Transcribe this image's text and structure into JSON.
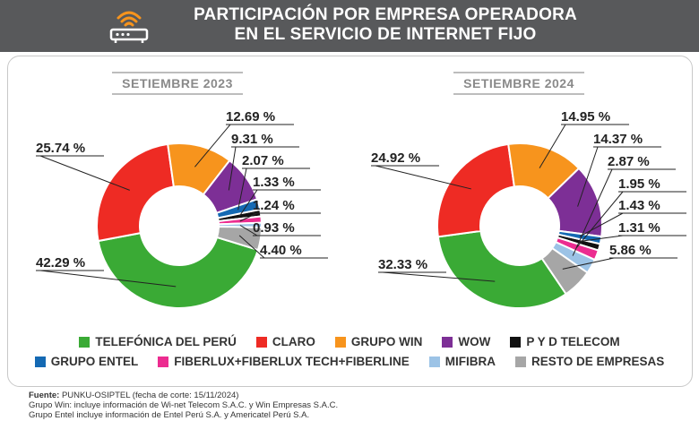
{
  "header": {
    "title_line1": "PARTICIPACIÓN POR EMPRESA OPERADORA",
    "title_line2": "EN EL SERVICIO DE INTERNET FIJO",
    "icon": "router-wifi-icon"
  },
  "chart_data": [
    {
      "type": "pie",
      "subtitle": "SETIEMBRE 2023",
      "categories": [
        "TELEFÓNICA DEL PERÚ",
        "CLARO",
        "GRUPO WIN",
        "WOW",
        "P Y D TELECOM",
        "GRUPO ENTEL",
        "FIBERLUX+FIBERLUX TECH+FIBERLINE",
        "MIFIBRA",
        "RESTO DE EMPRESAS"
      ],
      "values": [
        42.29,
        25.74,
        12.69,
        9.31,
        1.33,
        2.07,
        1.24,
        0.93,
        4.4
      ],
      "labels": [
        "42.29 %",
        "25.74 %",
        "12.69 %",
        "9.31 %",
        "1.33 %",
        "2.07 %",
        "1.24 %",
        "0.93 %",
        "4.40 %"
      ]
    },
    {
      "type": "pie",
      "subtitle": "SETIEMBRE 2024",
      "categories": [
        "TELEFÓNICA DEL PERÚ",
        "CLARO",
        "GRUPO WIN",
        "WOW",
        "P Y D TELECOM",
        "GRUPO ENTEL",
        "FIBERLUX+FIBERLUX TECH+FIBERLINE",
        "MIFIBRA",
        "RESTO DE EMPRESAS"
      ],
      "values": [
        32.33,
        24.92,
        14.95,
        14.37,
        1.31,
        1.43,
        1.95,
        2.87,
        5.86
      ],
      "labels": [
        "32.33 %",
        "24.92 %",
        "14.95 %",
        "14.37 %",
        "1.31 %",
        "1.43 %",
        "1.95 %",
        "2.87 %",
        "5.86 %"
      ]
    }
  ],
  "legend": {
    "row1": [
      {
        "name": "TELEFÓNICA DEL PERÚ",
        "color": "#3aaa35"
      },
      {
        "name": "CLARO",
        "color": "#ee2b24"
      },
      {
        "name": "GRUPO WIN",
        "color": "#f7941d"
      },
      {
        "name": "WOW",
        "color": "#7d2f96"
      },
      {
        "name": "P Y D TELECOM",
        "color": "#111111"
      }
    ],
    "row2": [
      {
        "name": "GRUPO ENTEL",
        "color": "#1469b3"
      },
      {
        "name": "FIBERLUX+FIBERLUX TECH+FIBERLINE",
        "color": "#ec2c90"
      },
      {
        "name": "MIFIBRA",
        "color": "#9cc3e6"
      },
      {
        "name": "RESTO DE EMPRESAS",
        "color": "#a6a6a6"
      }
    ]
  },
  "notes": {
    "source_label": "Fuente:",
    "source_text": " PUNKU-OSIPTEL (fecha de corte: 15/11/2024)",
    "line2": "Grupo Win: incluye información de Wi-net Telecom S.A.C. y Win Empresas S.A.C.",
    "line3": "Grupo Entel incluye información de Entel Perú S.A. y Americatel Perú S.A."
  }
}
